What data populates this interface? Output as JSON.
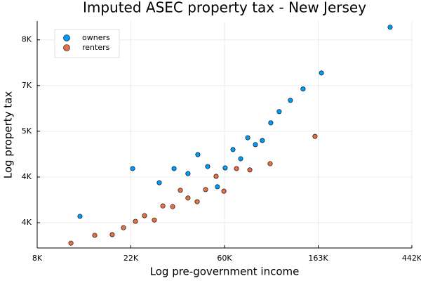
{
  "chart_data": {
    "type": "scatter",
    "title": "Imputed ASEC property tax - New Jersey",
    "x_label": "Log pre-government income",
    "y_label": "Log property tax",
    "xscale": "log",
    "yscale": "log",
    "grid": true,
    "legend": "top-left",
    "xlim": [
      8103,
      442413
    ],
    "xticks": [
      {
        "value": 8103,
        "label": "8K"
      },
      {
        "value": 22026,
        "label": "22K"
      },
      {
        "value": 59874,
        "label": "60K"
      },
      {
        "value": 162755,
        "label": "163K"
      },
      {
        "value": 442413,
        "label": "442K"
      }
    ],
    "ylim": [
      3260,
      8796
    ],
    "yticks": [
      {
        "value": 3641,
        "label": "4K"
      },
      {
        "value": 4447,
        "label": "4K"
      },
      {
        "value": 5432,
        "label": "5K"
      },
      {
        "value": 6634,
        "label": "7K"
      },
      {
        "value": 8103,
        "label": "8K"
      }
    ],
    "series": [
      {
        "name": "owners",
        "color": "#009af9",
        "x": [
          12795,
          22449,
          29824,
          34933,
          40527,
          45021,
          50000,
          55480,
          60294,
          65502,
          71130,
          76698,
          83225,
          89631,
          98074,
          107294,
          120945,
          138429,
          168452,
          350737
        ],
        "values": [
          3744,
          4614,
          4337,
          4614,
          4514,
          4904,
          4655,
          4260,
          4628,
          5014,
          4817,
          5280,
          5124,
          5217,
          5635,
          5920,
          6218,
          6536,
          7009,
          8561
        ]
      },
      {
        "name": "renters",
        "color": "#e26f46",
        "x": [
          11615,
          14974,
          18052,
          20352,
          23127,
          25484,
          28303,
          30990,
          34405,
          37356,
          40527,
          44713,
          48920,
          54713,
          59456,
          68017,
          78435,
          97415,
          157289
        ],
        "values": [
          3330,
          3446,
          3456,
          3562,
          3663,
          3755,
          3684,
          3918,
          3906,
          4196,
          4056,
          3992,
          4209,
          4460,
          4180,
          4614,
          4587,
          4713,
          5312
        ]
      }
    ]
  }
}
